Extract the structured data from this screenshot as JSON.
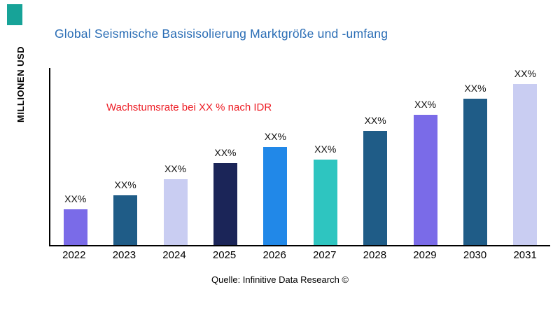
{
  "accent": {
    "corner_square_color": "#17A398"
  },
  "title": {
    "text": "Global Seismische Basisisolierung Marktgröße und -umfang",
    "color": "#2A6DB5"
  },
  "annotation": {
    "text": "Wachstumsrate bei XX % nach IDR",
    "color": "#ED1C24"
  },
  "source": {
    "text": "Quelle: Infinitive Data Research ©"
  },
  "chart_data": {
    "type": "bar",
    "title": "Global Seismische Basisisolierung Marktgröße und -umfang",
    "xlabel": "",
    "ylabel": "MILLIONEN USD",
    "categories": [
      "2022",
      "2023",
      "2024",
      "2025",
      "2026",
      "2027",
      "2028",
      "2029",
      "2030",
      "2031"
    ],
    "values": [
      20,
      28,
      37,
      46,
      55,
      48,
      64,
      73,
      82,
      91
    ],
    "bar_labels": [
      "XX%",
      "XX%",
      "XX%",
      "XX%",
      "XX%",
      "XX%",
      "XX%",
      "XX%",
      "XX%",
      "XX%"
    ],
    "colors": [
      "#7A6BE8",
      "#1F5C87",
      "#C9CDF2",
      "#1B2558",
      "#2188E8",
      "#2EC5C0",
      "#1F5C87",
      "#7A6BE8",
      "#1F5C87",
      "#C9CDF2"
    ],
    "ylim": [
      0,
      100
    ],
    "grid": false,
    "legend": "none",
    "annotation": "Wachstumsrate bei XX % nach IDR",
    "source": "Quelle: Infinitive Data Research ©"
  }
}
